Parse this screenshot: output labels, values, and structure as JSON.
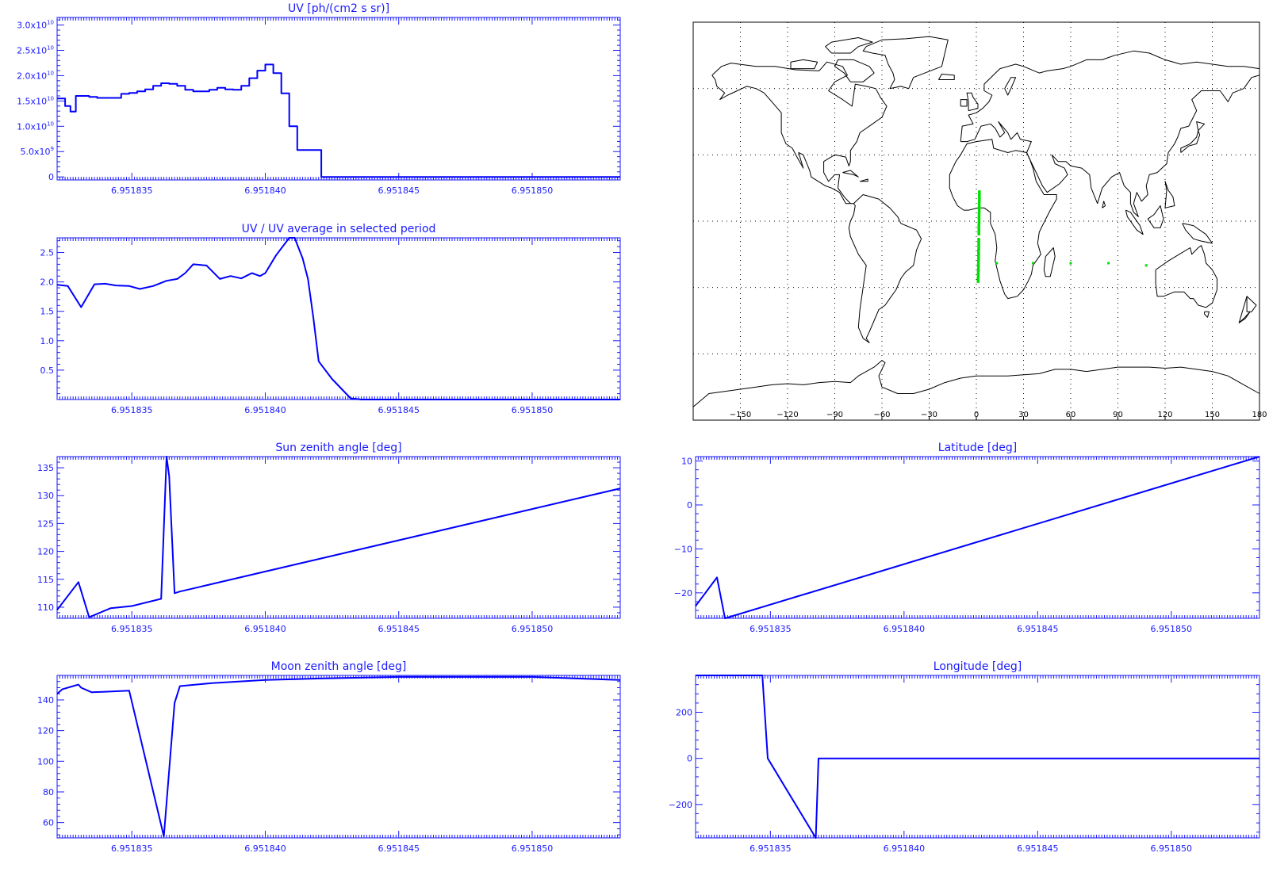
{
  "chart_data": [
    {
      "id": "uv",
      "type": "line",
      "step": true,
      "title": "UV [ph/(cm2 s sr)]",
      "xlim": [
        6.9518322,
        6.9518533
      ],
      "ylim": [
        -600000000.0,
        31500000000.0
      ],
      "xticks": [
        6.951835,
        6.95184,
        6.951845,
        6.95185
      ],
      "xtick_labels": [
        "6.951835",
        "6.951840",
        "6.951845",
        "6.951850"
      ],
      "yticks": [
        0,
        5000000000.0,
        10000000000.0,
        15000000000.0,
        20000000000.0,
        25000000000.0,
        30000000000.0
      ],
      "ytick_labels": [
        {
          "base": "0",
          "exp": ""
        },
        {
          "base": "5.0x10",
          "exp": "9"
        },
        {
          "base": "1.0x10",
          "exp": "10"
        },
        {
          "base": "1.5x10",
          "exp": "10"
        },
        {
          "base": "2.0x10",
          "exp": "10"
        },
        {
          "base": "2.5x10",
          "exp": "10"
        },
        {
          "base": "3.0x10",
          "exp": "10"
        }
      ],
      "x": [
        6.9518322,
        6.9518325,
        6.9518327,
        6.9518329,
        6.9518331,
        6.9518334,
        6.9518337,
        6.951834,
        6.9518343,
        6.9518346,
        6.9518349,
        6.9518352,
        6.9518355,
        6.9518358,
        6.9518361,
        6.9518364,
        6.9518367,
        6.951837,
        6.9518373,
        6.9518376,
        6.9518379,
        6.9518382,
        6.9518385,
        6.9518388,
        6.9518391,
        6.9518394,
        6.9518397,
        6.95184,
        6.9518403,
        6.9518406,
        6.9518409,
        6.9518412,
        6.9518415,
        6.9518418,
        6.9518421,
        6.9518422,
        6.9518424,
        6.9518427,
        6.951843,
        6.9518433,
        6.9518435,
        6.951844,
        6.951845,
        6.951846,
        6.951847,
        6.951848,
        6.951849,
        6.95185,
        6.951851,
        6.951852,
        6.9518533
      ],
      "y": [
        15500000000.0,
        14000000000.0,
        12900000000.0,
        16000000000.0,
        16000000000.0,
        15800000000.0,
        15600000000.0,
        15600000000.0,
        15600000000.0,
        16400000000.0,
        16600000000.0,
        16900000000.0,
        17300000000.0,
        18000000000.0,
        18500000000.0,
        18400000000.0,
        18000000000.0,
        17200000000.0,
        16900000000.0,
        16900000000.0,
        17200000000.0,
        17600000000.0,
        17300000000.0,
        17200000000.0,
        18000000000.0,
        19500000000.0,
        21000000000.0,
        22200000000.0,
        20500000000.0,
        16500000000.0,
        10000000000.0,
        5300000000.0,
        5300000000.0,
        5300000000.0,
        0.0,
        0.0,
        0.0,
        0.0,
        0.0,
        0.0,
        0.0,
        0.0,
        0.0,
        0.0,
        0.0,
        0.0,
        0.0,
        0.0,
        0.0,
        0.0,
        0.0
      ]
    },
    {
      "id": "uv_ratio",
      "type": "line",
      "title": "UV / UV average in selected period",
      "xlim": [
        6.9518322,
        6.9518533
      ],
      "ylim": [
        0,
        2.75
      ],
      "xticks": [
        6.951835,
        6.95184,
        6.951845,
        6.95185
      ],
      "xtick_labels": [
        "6.951835",
        "6.951840",
        "6.951845",
        "6.951850"
      ],
      "yticks": [
        0.5,
        1.0,
        1.5,
        2.0,
        2.5
      ],
      "ytick_labels": [
        "0.5",
        "1.0",
        "1.5",
        "2.0",
        "2.5"
      ],
      "x": [
        6.9518322,
        6.9518326,
        6.9518331,
        6.9518336,
        6.951834,
        6.9518344,
        6.9518349,
        6.9518353,
        6.9518358,
        6.9518363,
        6.9518367,
        6.951837,
        6.9518373,
        6.9518378,
        6.9518383,
        6.9518387,
        6.9518391,
        6.9518395,
        6.9518398,
        6.95184,
        6.9518404,
        6.9518409,
        6.9518411,
        6.9518414,
        6.9518416,
        6.9518418,
        6.951842,
        6.9518425,
        6.9518432,
        6.9518436,
        6.951844,
        6.951845,
        6.951846,
        6.951847,
        6.951848,
        6.951849,
        6.95185,
        6.951851,
        6.951852,
        6.9518533
      ],
      "y": [
        1.95,
        1.93,
        1.57,
        1.96,
        1.97,
        1.94,
        1.93,
        1.88,
        1.93,
        2.02,
        2.05,
        2.15,
        2.3,
        2.28,
        2.05,
        2.1,
        2.06,
        2.15,
        2.1,
        2.15,
        2.45,
        2.75,
        2.75,
        2.4,
        2.05,
        1.4,
        0.65,
        0.35,
        0.02,
        0.0,
        0.0,
        0.0,
        0.0,
        0.0,
        0.0,
        0.0,
        0.0,
        0.0,
        0.0,
        0.0
      ]
    },
    {
      "id": "sun_zenith",
      "type": "line",
      "title": "Sun zenith angle [deg]",
      "xlim": [
        6.9518322,
        6.9518533
      ],
      "ylim": [
        108,
        137
      ],
      "xticks": [
        6.951835,
        6.95184,
        6.951845,
        6.95185
      ],
      "xtick_labels": [
        "6.951835",
        "6.951840",
        "6.951845",
        "6.951850"
      ],
      "yticks": [
        110,
        115,
        120,
        125,
        130,
        135
      ],
      "ytick_labels": [
        "110",
        "115",
        "120",
        "125",
        "130",
        "135"
      ],
      "x": [
        6.9518322,
        6.951833,
        6.9518334,
        6.9518342,
        6.951835,
        6.9518361,
        6.9518363,
        6.9518364,
        6.9518366,
        6.9518368,
        6.9518533
      ],
      "y": [
        109.5,
        114.5,
        108.2,
        109.8,
        110.2,
        111.5,
        137.0,
        133.5,
        112.5,
        112.8,
        131.3
      ]
    },
    {
      "id": "latitude",
      "type": "line",
      "title": "Latitude [deg]",
      "xlim": [
        6.9518322,
        6.9518533
      ],
      "ylim": [
        -25.8,
        11
      ],
      "xticks": [
        6.951835,
        6.95184,
        6.951845,
        6.95185
      ],
      "xtick_labels": [
        "6.951835",
        "6.951840",
        "6.951845",
        "6.951850"
      ],
      "yticks": [
        -20,
        -10,
        0,
        10
      ],
      "ytick_labels": [
        "−20",
        "−10",
        "0",
        "10"
      ],
      "x": [
        6.9518322,
        6.951833,
        6.9518333,
        6.9518533
      ],
      "y": [
        -23,
        -16.5,
        -25.8,
        11
      ]
    },
    {
      "id": "moon_zenith",
      "type": "line",
      "title": "Moon zenith angle [deg]",
      "xlim": [
        6.9518322,
        6.9518533
      ],
      "ylim": [
        50,
        156
      ],
      "xticks": [
        6.951835,
        6.95184,
        6.951845,
        6.95185
      ],
      "xtick_labels": [
        "6.951835",
        "6.951840",
        "6.951845",
        "6.951850"
      ],
      "yticks": [
        60,
        80,
        100,
        120,
        140
      ],
      "ytick_labels": [
        "60",
        "80",
        "100",
        "120",
        "140"
      ],
      "x": [
        6.9518322,
        6.9518324,
        6.9518328,
        6.951833,
        6.9518331,
        6.9518335,
        6.9518349,
        6.9518362,
        6.9518366,
        6.9518368,
        6.951838,
        6.951839,
        6.95184,
        6.951842,
        6.951845,
        6.95185,
        6.9518533
      ],
      "y": [
        144,
        147,
        149,
        150,
        148,
        145,
        146,
        51,
        138,
        149,
        151,
        152,
        153,
        154,
        155,
        155,
        153
      ]
    },
    {
      "id": "longitude",
      "type": "line",
      "title": "Longitude [deg]",
      "xlim": [
        6.9518322,
        6.9518533
      ],
      "ylim": [
        -345,
        360
      ],
      "xticks": [
        6.951835,
        6.95184,
        6.951845,
        6.95185
      ],
      "xtick_labels": [
        "6.951835",
        "6.951840",
        "6.951845",
        "6.951850"
      ],
      "yticks": [
        -200,
        0,
        200
      ],
      "ytick_labels": [
        "−200",
        "0",
        "200"
      ],
      "x": [
        6.9518322,
        6.9518347,
        6.9518349,
        6.9518367,
        6.9518368,
        6.9518533
      ],
      "y": [
        360,
        360,
        0,
        -345,
        0,
        0
      ]
    }
  ],
  "map": {
    "type": "map",
    "xlim": [
      -180,
      180
    ],
    "ylim": [
      -90,
      90
    ],
    "xticks": [
      -150,
      -120,
      -90,
      -60,
      -30,
      0,
      30,
      60,
      90,
      120,
      150,
      180
    ],
    "xtick_labels": [
      "−150",
      "−120",
      "−90",
      "−60",
      "−30",
      "0",
      "30",
      "60",
      "90",
      "120",
      "150",
      "180"
    ],
    "lat_gridlines": [
      -60,
      -30,
      0,
      30,
      60
    ],
    "lon_gridlines": [
      -150,
      -120,
      -90,
      -60,
      -30,
      0,
      30,
      60,
      90,
      120,
      150
    ],
    "track_color": "#00e000",
    "track": [
      [
        1.8,
        12.5
      ],
      [
        1.8,
        10
      ],
      [
        1.7,
        7.5
      ],
      [
        1.7,
        5
      ],
      [
        1.6,
        2.5
      ],
      [
        1.6,
        0
      ],
      [
        1.5,
        -2.5
      ],
      [
        1.5,
        -5
      ],
      [
        1.4,
        -9
      ],
      [
        1.4,
        -11.5
      ],
      [
        1.3,
        -14
      ],
      [
        1.3,
        -16.5
      ],
      [
        1.2,
        -19
      ],
      [
        1.2,
        -21.5
      ],
      [
        1.1,
        -24
      ],
      [
        1.0,
        -26.5
      ]
    ],
    "track_extra": [
      [
        13,
        -19
      ],
      [
        36,
        -19
      ],
      [
        60,
        -19
      ],
      [
        84,
        -19
      ],
      [
        108,
        -20
      ]
    ]
  }
}
